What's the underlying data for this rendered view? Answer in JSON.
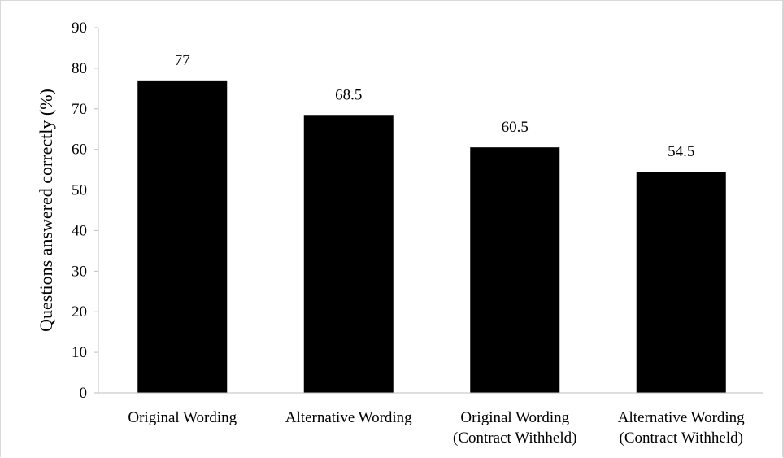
{
  "chart_data": {
    "type": "bar",
    "title": "",
    "xlabel": "",
    "ylabel": "Questions answered correctly (%)",
    "ylim": [
      0,
      90
    ],
    "yticks": [
      0,
      10,
      20,
      30,
      40,
      50,
      60,
      70,
      80,
      90
    ],
    "categories": [
      [
        "Original Wording"
      ],
      [
        "Alternative Wording"
      ],
      [
        "Original Wording",
        "(Contract Withheld)"
      ],
      [
        "Alternative Wording",
        "(Contract Withheld)"
      ]
    ],
    "values": [
      77,
      68.5,
      60.5,
      54.5
    ],
    "data_labels": [
      "77",
      "68.5",
      "60.5",
      "54.5"
    ],
    "bar_color": "#000000",
    "grid": false,
    "legend": "none"
  }
}
